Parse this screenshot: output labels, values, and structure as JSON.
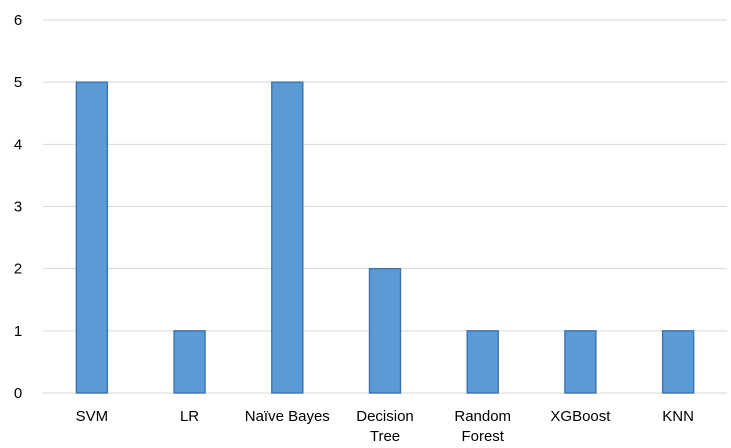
{
  "chart_data": {
    "type": "bar",
    "categories": [
      [
        "SVM"
      ],
      [
        "LR"
      ],
      [
        "Naïve Bayes"
      ],
      [
        "Decision",
        "Tree"
      ],
      [
        "Random",
        "Forest"
      ],
      [
        "XGBoost"
      ],
      [
        "KNN"
      ]
    ],
    "values": [
      5,
      1,
      5,
      2,
      1,
      1,
      1
    ],
    "ylim": [
      0,
      6
    ],
    "yticks": [
      "0",
      "1",
      "2",
      "3",
      "4",
      "5",
      "6"
    ],
    "title": "",
    "xlabel": "",
    "ylabel": "",
    "grid": "horizontal",
    "legend": "none",
    "bar_color": "#5b9bd5",
    "bar_edge_color": "#3a73b0",
    "grid_color": "#d9d9d9"
  }
}
